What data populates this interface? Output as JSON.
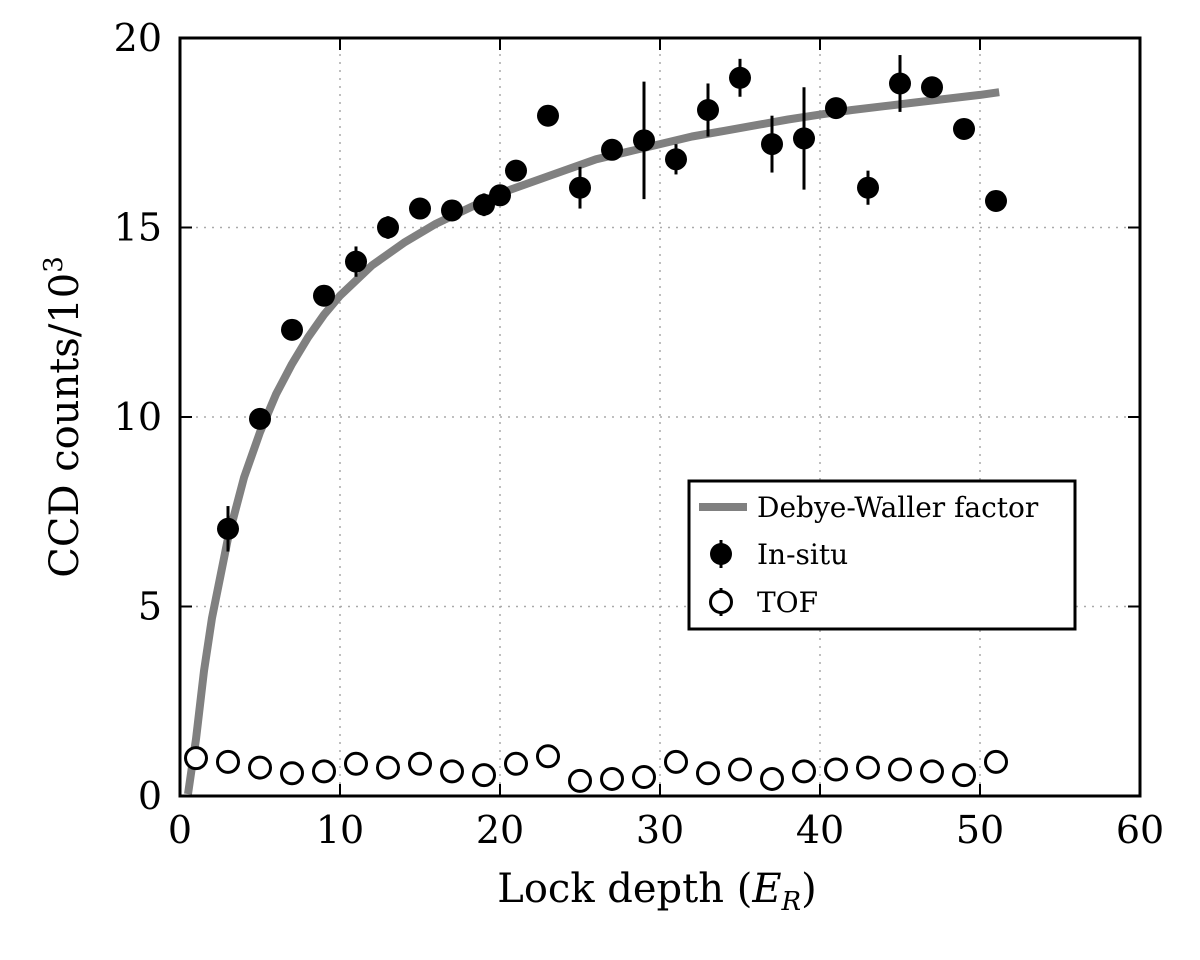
{
  "chart_data": {
    "type": "scatter",
    "xlabel": "Lock depth (",
    "xlabel_var": "E",
    "xlabel_sub": "R",
    "xlabel_close": ")",
    "ylabel": "CCD counts/10",
    "ylabel_sup": "3",
    "xlim": [
      0,
      60
    ],
    "ylim": [
      0,
      20
    ],
    "x_ticks": [
      "0",
      "10",
      "20",
      "30",
      "40",
      "50",
      "60"
    ],
    "y_ticks": [
      "0",
      "5",
      "10",
      "15",
      "20"
    ],
    "grid": true,
    "legend_position": "center-right",
    "colors": {
      "fit": "#808080",
      "points": "#000000"
    },
    "series": [
      {
        "name": "Debye-Waller factor",
        "kind": "line",
        "x": [
          0.5,
          1,
          1.5,
          2,
          3,
          4,
          5,
          6,
          7,
          8,
          9,
          10,
          12,
          14,
          16,
          18,
          20,
          22,
          24,
          26,
          28,
          30,
          32,
          34,
          36,
          38,
          40,
          42,
          44,
          46,
          48,
          50,
          51.2
        ],
        "y": [
          0.05,
          1.5,
          3.3,
          4.7,
          6.8,
          8.4,
          9.6,
          10.6,
          11.4,
          12.1,
          12.7,
          13.2,
          14.0,
          14.6,
          15.1,
          15.5,
          15.9,
          16.2,
          16.5,
          16.8,
          17.0,
          17.2,
          17.4,
          17.55,
          17.7,
          17.85,
          17.98,
          18.1,
          18.2,
          18.3,
          18.4,
          18.5,
          18.57
        ]
      },
      {
        "name": "In-situ",
        "kind": "points",
        "x": [
          3,
          5,
          7,
          9,
          11,
          13,
          15,
          17,
          19,
          20,
          21,
          23,
          25,
          27,
          29,
          31,
          33,
          35,
          37,
          39,
          41,
          43,
          45,
          47,
          49,
          51
        ],
        "y": [
          7.05,
          9.95,
          12.3,
          13.2,
          14.1,
          15.0,
          15.5,
          15.45,
          15.6,
          15.85,
          16.5,
          17.95,
          16.05,
          17.05,
          17.3,
          16.8,
          18.1,
          18.95,
          17.2,
          17.35,
          18.15,
          16.05,
          18.8,
          18.7,
          17.6,
          15.7
        ],
        "err": [
          0.6,
          0.2,
          0.2,
          0.25,
          0.4,
          0.3,
          0.2,
          0.2,
          0.3,
          0.2,
          0.2,
          0.15,
          0.55,
          0.2,
          1.55,
          0.4,
          0.7,
          0.5,
          0.75,
          1.35,
          0.2,
          0.45,
          0.75,
          0.2,
          0.2,
          0.2
        ]
      },
      {
        "name": "TOF",
        "kind": "points",
        "x": [
          1,
          3,
          5,
          7,
          9,
          11,
          13,
          15,
          17,
          19,
          21,
          23,
          25,
          27,
          29,
          31,
          33,
          35,
          37,
          39,
          41,
          43,
          45,
          47,
          49,
          51
        ],
        "y": [
          1.0,
          0.9,
          0.75,
          0.6,
          0.65,
          0.85,
          0.75,
          0.85,
          0.65,
          0.55,
          0.85,
          1.05,
          0.4,
          0.45,
          0.5,
          0.9,
          0.6,
          0.7,
          0.45,
          0.65,
          0.7,
          0.75,
          0.7,
          0.65,
          0.55,
          0.9
        ],
        "err": [
          0.2,
          0.1,
          0.1,
          0.1,
          0.1,
          0.1,
          0.1,
          0.1,
          0.1,
          0.1,
          0.1,
          0.1,
          0.1,
          0.1,
          0.1,
          0.1,
          0.1,
          0.1,
          0.1,
          0.1,
          0.1,
          0.1,
          0.1,
          0.1,
          0.1,
          0.1
        ]
      }
    ]
  }
}
